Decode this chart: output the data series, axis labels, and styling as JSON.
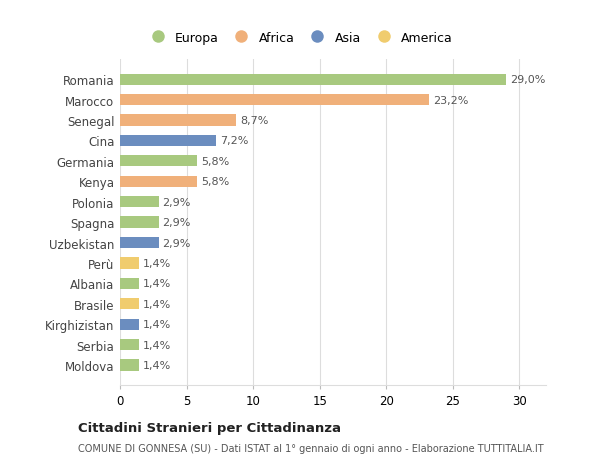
{
  "countries": [
    "Romania",
    "Marocco",
    "Senegal",
    "Cina",
    "Germania",
    "Kenya",
    "Polonia",
    "Spagna",
    "Uzbekistan",
    "Perù",
    "Albania",
    "Brasile",
    "Kirghizistan",
    "Serbia",
    "Moldova"
  ],
  "values": [
    29.0,
    23.2,
    8.7,
    7.2,
    5.8,
    5.8,
    2.9,
    2.9,
    2.9,
    1.4,
    1.4,
    1.4,
    1.4,
    1.4,
    1.4
  ],
  "labels": [
    "29,0%",
    "23,2%",
    "8,7%",
    "7,2%",
    "5,8%",
    "5,8%",
    "2,9%",
    "2,9%",
    "2,9%",
    "1,4%",
    "1,4%",
    "1,4%",
    "1,4%",
    "1,4%",
    "1,4%"
  ],
  "continents": [
    "Europa",
    "Africa",
    "Africa",
    "Asia",
    "Europa",
    "Africa",
    "Europa",
    "Europa",
    "Asia",
    "America",
    "Europa",
    "America",
    "Asia",
    "Europa",
    "Europa"
  ],
  "colors": {
    "Europa": "#a8c97f",
    "Africa": "#f0b07a",
    "Asia": "#6b8dbf",
    "America": "#f0cc6e"
  },
  "legend_order": [
    "Europa",
    "Africa",
    "Asia",
    "America"
  ],
  "title": "Cittadini Stranieri per Cittadinanza",
  "subtitle": "COMUNE DI GONNESA (SU) - Dati ISTAT al 1° gennaio di ogni anno - Elaborazione TUTTITALIA.IT",
  "xlim": [
    0,
    32
  ],
  "xticks": [
    0,
    5,
    10,
    15,
    20,
    25,
    30
  ],
  "bg_color": "#ffffff",
  "grid_color": "#dddddd"
}
